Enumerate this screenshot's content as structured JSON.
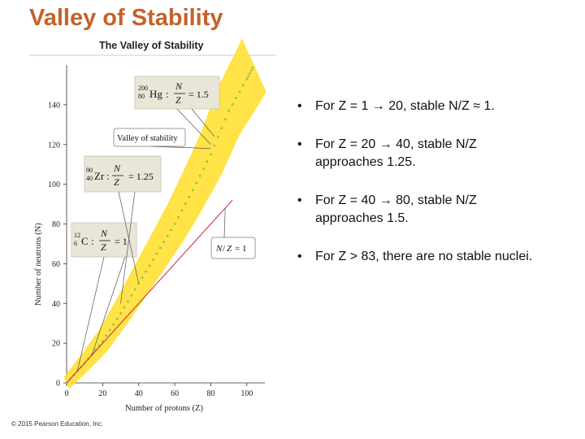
{
  "slide": {
    "title": "Valley of Stability",
    "copyright": "© 2015 Pearson Education, Inc."
  },
  "bullets": [
    {
      "marker": "•",
      "lines": [
        "For Z = 1 → 20,  stable N/Z ≈ 1."
      ]
    },
    {
      "marker": "•",
      "lines": [
        "For Z = 20 → 40, stable N/Z",
        "approaches 1.25."
      ]
    },
    {
      "marker": "•",
      "lines": [
        "For Z = 40 → 80, stable N/Z",
        "approaches 1.5."
      ]
    },
    {
      "marker": "•",
      "lines": [
        "For Z > 83, there are no stable nuclei."
      ]
    }
  ],
  "chart_data": {
    "type": "scatter",
    "title": "The Valley of Stability",
    "xlabel": "Number of protons (Z)",
    "ylabel": "Number of neutrons (N)",
    "xlim": [
      0,
      110
    ],
    "ylim": [
      0,
      160
    ],
    "xticks": [
      "0",
      "20",
      "40",
      "60",
      "80",
      "100"
    ],
    "yticks": [
      "0",
      "20",
      "40",
      "60",
      "80",
      "100",
      "120",
      "140"
    ],
    "band": {
      "name": "nuclides",
      "color": "#ffe033",
      "points": [
        [
          0,
          0
        ],
        [
          10,
          10
        ],
        [
          20,
          21
        ],
        [
          30,
          35
        ],
        [
          40,
          50
        ],
        [
          50,
          65
        ],
        [
          60,
          80
        ],
        [
          70,
          97
        ],
        [
          80,
          115
        ],
        [
          90,
          137
        ],
        [
          100,
          153
        ],
        [
          104,
          160
        ]
      ]
    },
    "reference_line": {
      "label": "N/Z = 1",
      "x": [
        0,
        92
      ],
      "y": [
        0,
        92
      ],
      "color": "#cc2244"
    },
    "annotations": [
      {
        "nuclide_top": "200",
        "nuclide_bottom": "80",
        "symbol": "Hg",
        "ratio_num": "N",
        "ratio_den": "Z",
        "value": "= 1.5",
        "points_to": [
          80,
          120
        ]
      },
      {
        "label": "Valley of stability",
        "points_to": [
          80,
          118
        ]
      },
      {
        "nuclide_top": "90",
        "nuclide_bottom": "40",
        "symbol": "Zr",
        "ratio_num": "N",
        "ratio_den": "Z",
        "value": "= 1.25",
        "points_to": [
          40,
          50
        ]
      },
      {
        "nuclide_top": "12",
        "nuclide_bottom": "6",
        "symbol": "C",
        "ratio_num": "N",
        "ratio_den": "Z",
        "value": "= 1",
        "points_to": [
          6,
          6
        ]
      },
      {
        "label_num": "N",
        "label_den": "Z",
        "value": "= 1",
        "points_to": [
          88,
          88
        ]
      }
    ]
  }
}
